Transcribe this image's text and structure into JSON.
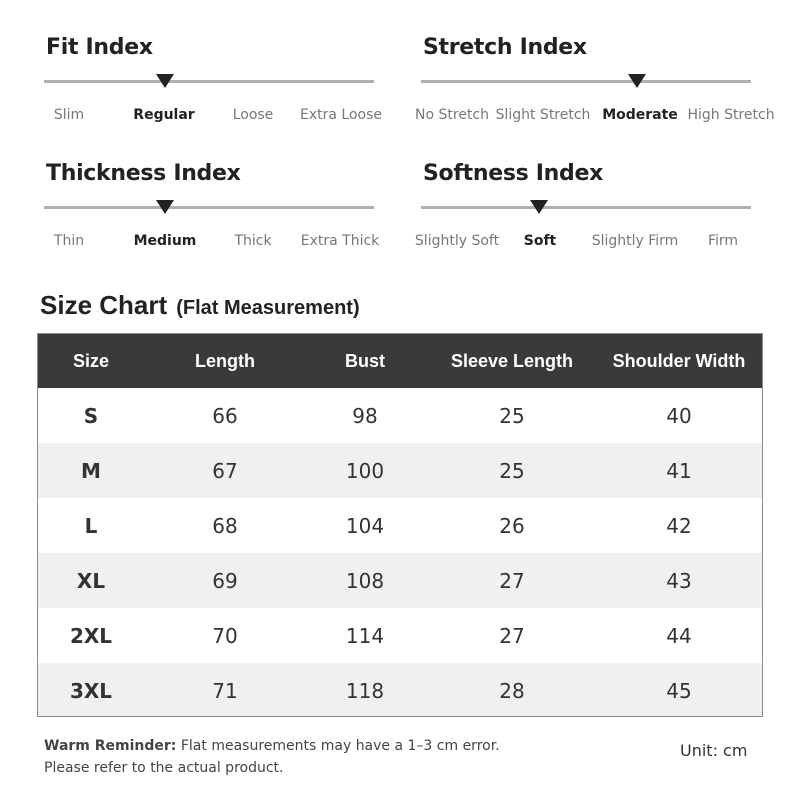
{
  "indexes": {
    "fit": {
      "title": "Fit Index",
      "options": [
        "Slim",
        "Regular",
        "Loose",
        "Extra Loose"
      ],
      "selected": "Regular"
    },
    "stretch": {
      "title": "Stretch Index",
      "options": [
        "No Stretch",
        "Slight Stretch",
        "Moderate",
        "High Stretch"
      ],
      "selected": "Moderate"
    },
    "thickness": {
      "title": "Thickness Index",
      "options": [
        "Thin",
        "Medium",
        "Thick",
        "Extra Thick"
      ],
      "selected": "Medium"
    },
    "softness": {
      "title": "Softness Index",
      "options": [
        "Slightly Soft",
        "Soft",
        "Slightly Firm",
        "Firm"
      ],
      "selected": "Soft"
    }
  },
  "size_chart": {
    "title": "Size Chart",
    "subtitle": "(Flat Measurement)",
    "headers": [
      "Size",
      "Length",
      "Bust",
      "Sleeve Length",
      "Shoulder Width"
    ],
    "rows": [
      [
        "S",
        "66",
        "98",
        "25",
        "40"
      ],
      [
        "M",
        "67",
        "100",
        "25",
        "41"
      ],
      [
        "L",
        "68",
        "104",
        "26",
        "42"
      ],
      [
        "XL",
        "69",
        "108",
        "27",
        "43"
      ],
      [
        "2XL",
        "70",
        "114",
        "27",
        "44"
      ],
      [
        "3XL",
        "71",
        "118",
        "28",
        "45"
      ]
    ]
  },
  "footer": {
    "reminder_label": "Warm Reminder:",
    "reminder_line1": "Flat measurements may have a 1–3 cm error.",
    "reminder_line2": "Please refer to the actual product.",
    "unit": "Unit: cm"
  },
  "colors": {
    "header_bg": "#3a3a3a",
    "row_alt": "#f0f0f0",
    "track": "#b0b0b0",
    "marker": "#222222"
  }
}
